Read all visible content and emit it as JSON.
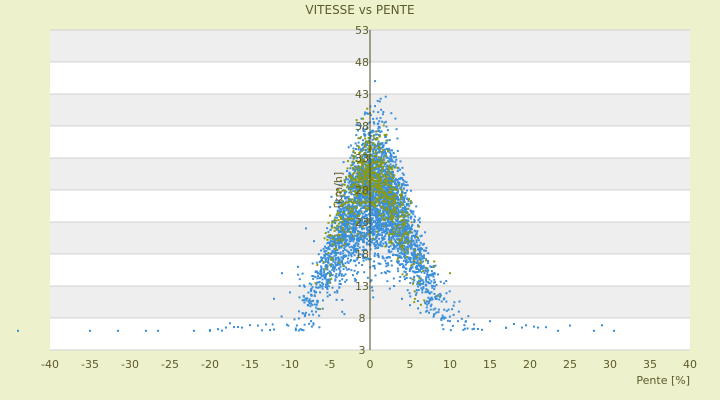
{
  "chart_data": {
    "type": "scatter",
    "title": "VITESSE vs PENTE",
    "xlabel": "Pente [%]",
    "ylabel": "[km/h]",
    "xlim": [
      -40,
      40
    ],
    "ylim": [
      3,
      53
    ],
    "xticks": [
      -40,
      -35,
      -30,
      -25,
      -20,
      -15,
      -10,
      -5,
      0,
      5,
      10,
      15,
      20,
      25,
      30,
      35,
      40
    ],
    "yticks": [
      3,
      8,
      13,
      18,
      23,
      28,
      33,
      38,
      43,
      48,
      53
    ],
    "grid": "horizontal bands",
    "series": [
      {
        "color": "#3b8fd9",
        "approx_count": 3500,
        "values": [
          [
            -44,
            6
          ],
          [
            -35,
            6
          ],
          [
            -31.5,
            6
          ],
          [
            -28,
            6
          ],
          [
            -26.5,
            6
          ],
          [
            -22,
            6
          ],
          [
            -20,
            6
          ],
          [
            -18,
            6.5
          ],
          [
            -16,
            6.5
          ],
          [
            -13,
            7
          ],
          [
            -12,
            11
          ],
          [
            -11,
            15
          ],
          [
            -10,
            12
          ],
          [
            -9,
            16
          ],
          [
            -8,
            22
          ],
          [
            -7,
            20
          ],
          [
            -6,
            17
          ],
          [
            -5,
            14
          ],
          [
            -4,
            21
          ],
          [
            -3,
            24
          ],
          [
            -2,
            19
          ],
          [
            -1,
            22
          ],
          [
            0,
            20
          ],
          [
            1,
            18
          ],
          [
            2,
            15
          ],
          [
            3,
            13
          ],
          [
            4,
            11
          ],
          [
            5,
            10
          ],
          [
            6,
            9.5
          ],
          [
            7,
            9
          ],
          [
            8,
            8.5
          ],
          [
            9,
            8
          ],
          [
            10,
            7.5
          ],
          [
            11,
            7.5
          ],
          [
            12,
            7.5
          ],
          [
            13,
            7
          ],
          [
            15,
            7.5
          ],
          [
            17,
            6.5
          ],
          [
            19,
            6.5
          ],
          [
            21,
            6.5
          ],
          [
            23.5,
            6
          ],
          [
            28,
            6
          ],
          [
            30.5,
            6
          ]
        ]
      },
      {
        "color": "#8a9a12",
        "approx_count": 700,
        "values": [
          [
            -5,
            24
          ],
          [
            -4,
            28
          ],
          [
            -3,
            30
          ],
          [
            -2,
            26
          ],
          [
            -1,
            32
          ],
          [
            0,
            40
          ],
          [
            1,
            30
          ],
          [
            2,
            27
          ],
          [
            3,
            25
          ],
          [
            4,
            22
          ],
          [
            5,
            20
          ],
          [
            6,
            18
          ],
          [
            7,
            17
          ],
          [
            8,
            16
          ],
          [
            10,
            15
          ],
          [
            0.5,
            36
          ],
          [
            -1.5,
            30
          ],
          [
            1.5,
            24
          ]
        ]
      }
    ]
  }
}
